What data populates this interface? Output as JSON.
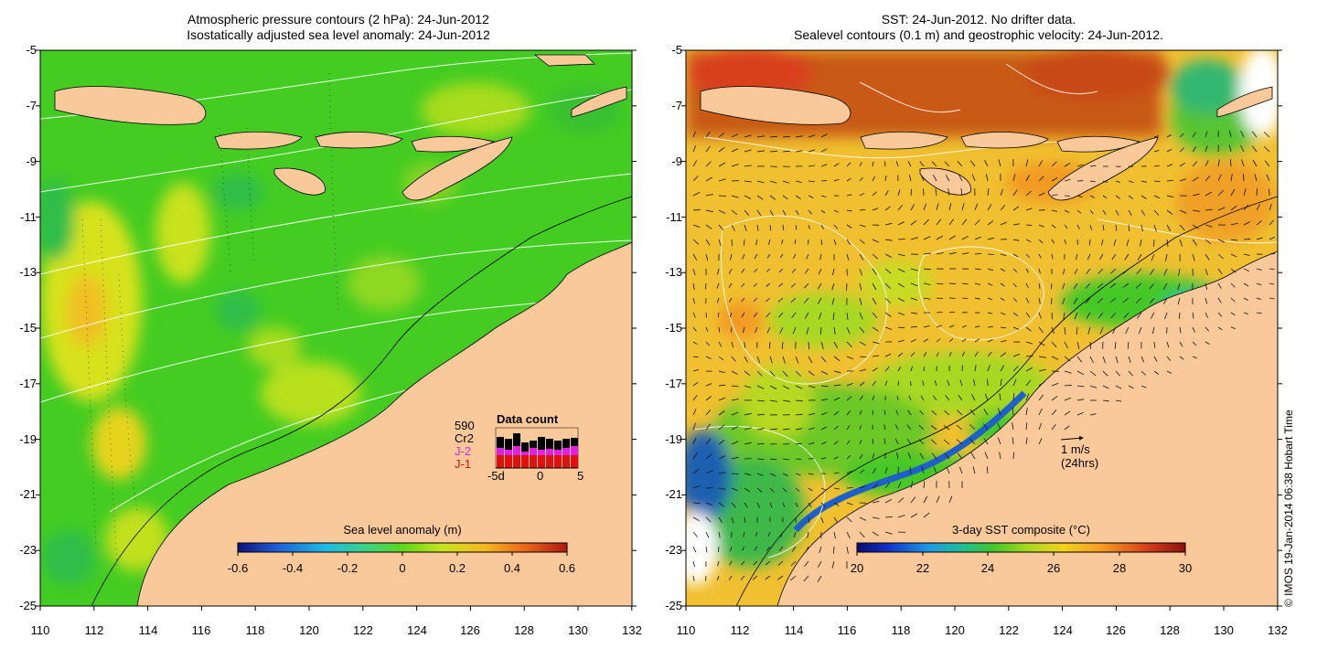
{
  "left_panel": {
    "title_line1": "Atmospheric pressure contours (2 hPa): 24-Jun-2012",
    "title_line2": "Isostatically adjusted sea level anomaly: 24-Jun-2012",
    "colorbar_title": "Sea level anomaly (m)",
    "colorbar_ticks": [
      "-0.6",
      "-0.4",
      "-0.2",
      "0",
      "0.2",
      "0.4",
      "0.6"
    ],
    "inset": {
      "title": "Data count",
      "count": "590",
      "sat1": "Cr2",
      "sat2": "J-2",
      "sat3": "J-1",
      "axis_labels": [
        "-5d",
        "0",
        "5"
      ]
    }
  },
  "right_panel": {
    "title_line1": "SST: 24-Jun-2012. No drifter data.",
    "title_line2": "Sealevel contours (0.1 m) and geostrophic velocity: 24-Jun-2012.",
    "colorbar_title": "3-day SST composite (°C)",
    "colorbar_ticks": [
      "20",
      "22",
      "24",
      "26",
      "28",
      "30"
    ],
    "velocity_scale_line1": "1 m/s",
    "velocity_scale_line2": "(24hrs)"
  },
  "axes": {
    "y_ticks": [
      "-5",
      "-7",
      "-9",
      "-11",
      "-13",
      "-15",
      "-17",
      "-19",
      "-21",
      "-23",
      "-25"
    ],
    "x_ticks": [
      "110",
      "112",
      "114",
      "116",
      "118",
      "120",
      "122",
      "124",
      "126",
      "128",
      "130",
      "132"
    ]
  },
  "copyright": "© IMOS 19-Jan-2014 06:38 Hobart Time",
  "colors": {
    "land": "#f9c99a",
    "sla_base": "#44cc22",
    "sst_base": "#f0c030",
    "north_warm": "#c85a18",
    "sla_colormap": [
      "#10107a",
      "#1f5fd8",
      "#1ebde6",
      "#3fd27a",
      "#5cd81c",
      "#c7e41e",
      "#f5b820",
      "#e8621a",
      "#b01810"
    ],
    "sst_colormap": [
      "#0a0a70",
      "#1236c8",
      "#1e9ae6",
      "#1fc08c",
      "#44c828",
      "#a8d820",
      "#f5d21e",
      "#f39a22",
      "#d8401a",
      "#8c1010"
    ]
  }
}
